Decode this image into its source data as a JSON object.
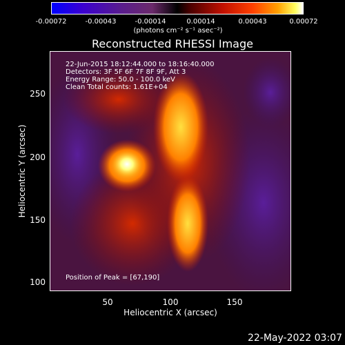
{
  "colorbar": {
    "ticks": [
      "-0.00072",
      "-0.00043",
      "-0.00014",
      "0.00014",
      "0.00043",
      "0.00072"
    ],
    "unit": "(photons cm⁻² s⁻¹ asec⁻²)"
  },
  "chart_data": {
    "type": "heatmap",
    "title": "Reconstructed RHESSI Image",
    "xlabel": "Heliocentric X (arcsec)",
    "ylabel": "Heliocentric Y (arcsec)",
    "xticks": [
      "50",
      "100",
      "150"
    ],
    "yticks": [
      "250",
      "200",
      "150",
      "100"
    ],
    "xlim": [
      5,
      195
    ],
    "ylim": [
      95,
      282
    ],
    "peak": [
      67,
      190
    ],
    "annotations": [
      "22-Jun-2015 18:12:44.000 to 18:16:40.000",
      "Detectors: 3F 5F 6F 7F 8F 9F, Att 3",
      "Energy Range: 50.0 - 100.0 keV",
      "Clean     Total counts: 1.61E+04"
    ],
    "peak_label": "Position of Peak = [67,190]"
  },
  "footer": {
    "date": "22-May-2022 03:07"
  }
}
